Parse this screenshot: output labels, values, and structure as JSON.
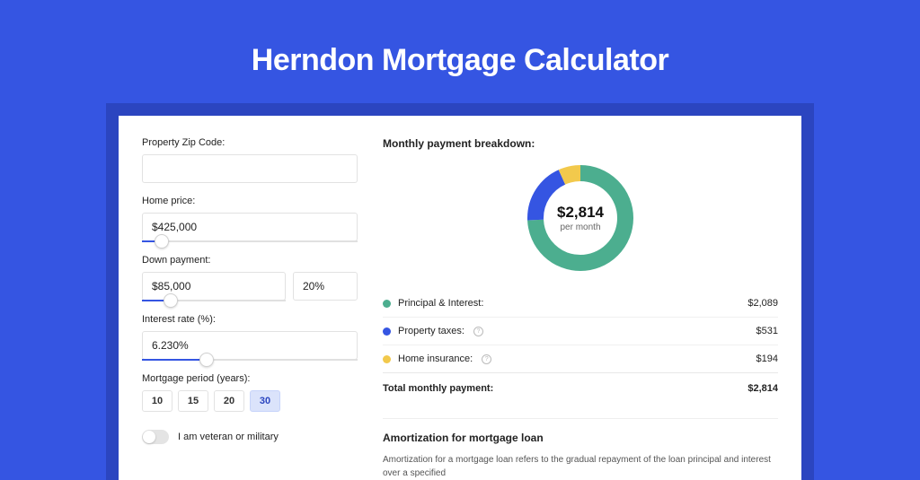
{
  "page": {
    "title": "Herndon Mortgage Calculator",
    "background_color": "#3555e2",
    "card_wrap_color": "#2b45c0",
    "card_background": "#ffffff"
  },
  "form": {
    "zip": {
      "label": "Property Zip Code:",
      "value": ""
    },
    "home_price": {
      "label": "Home price:",
      "value": "$425,000",
      "slider_percent": 9
    },
    "down_payment": {
      "label": "Down payment:",
      "amount": "$85,000",
      "percent": "20%",
      "slider_percent": 20
    },
    "interest_rate": {
      "label": "Interest rate (%):",
      "value": "6.230%",
      "slider_percent": 30
    },
    "period": {
      "label": "Mortgage period (years):",
      "options": [
        "10",
        "15",
        "20",
        "30"
      ],
      "selected_index": 3
    },
    "veteran": {
      "label": "I am veteran or military",
      "checked": false
    }
  },
  "breakdown": {
    "title": "Monthly payment breakdown:",
    "center_amount": "$2,814",
    "center_sub": "per month",
    "donut": {
      "radius": 50,
      "stroke_width": 18,
      "slices": [
        {
          "key": "principal",
          "percent": 74.2,
          "color": "#4cae8f"
        },
        {
          "key": "taxes",
          "percent": 18.9,
          "color": "#3555e2"
        },
        {
          "key": "insurance",
          "percent": 6.9,
          "color": "#f2c94c"
        }
      ]
    },
    "items": [
      {
        "label": "Principal & Interest:",
        "value": "$2,089",
        "color": "#4cae8f",
        "info": false
      },
      {
        "label": "Property taxes:",
        "value": "$531",
        "color": "#3555e2",
        "info": true
      },
      {
        "label": "Home insurance:",
        "value": "$194",
        "color": "#f2c94c",
        "info": true
      }
    ],
    "total": {
      "label": "Total monthly payment:",
      "value": "$2,814"
    }
  },
  "amortization": {
    "title": "Amortization for mortgage loan",
    "text": "Amortization for a mortgage loan refers to the gradual repayment of the loan principal and interest over a specified"
  }
}
